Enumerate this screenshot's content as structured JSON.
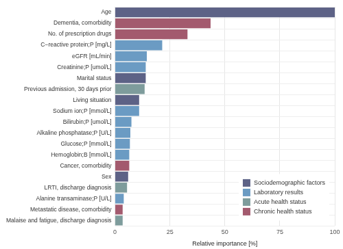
{
  "chart_data": {
    "type": "bar",
    "orientation": "horizontal",
    "stacked": true,
    "grid": true,
    "legend": "lower right",
    "x_label": "Relative importance [%]",
    "categories": [
      "Age",
      "Dementia, comorbidity",
      "No. of prescription drugs",
      "C−reactive protein;P [mg/L]",
      "eGFR [mL/min]",
      "Creatinine;P [umol/L]",
      "Marital status",
      "Previous admission, 30 days prior",
      "Living situation",
      "Sodium ion;P [mmol/L]",
      "Bilirubin;P [umol/L]",
      "Alkaline phosphatase;P [U/L]",
      "Glucose;P [mmol/L]",
      "Hemoglobin;B [mmol/L]",
      "Cancer, comorbidity",
      "Sex",
      "LRTI, discharge diagnosis",
      "Alanine transaminase;P [U/L]",
      "Metastatic disease, comorbidity",
      "Malaise and fatigue, discharge diagnosis"
    ],
    "series": [
      {
        "name": "Sociodemographic factors",
        "color": "#5d6286",
        "values": [
          100,
          null,
          null,
          null,
          null,
          null,
          14,
          null,
          11,
          null,
          null,
          null,
          null,
          null,
          null,
          6,
          null,
          null,
          null,
          null
        ]
      },
      {
        "name": "Laboratory results",
        "color": "#6b9bc3",
        "values": [
          null,
          null,
          null,
          21.5,
          14.5,
          14,
          null,
          null,
          null,
          11,
          7.5,
          7,
          6.8,
          6.5,
          null,
          null,
          null,
          4,
          null,
          null
        ]
      },
      {
        "name": "Acute health status",
        "color": "#7e9c9c",
        "values": [
          null,
          null,
          null,
          null,
          null,
          null,
          null,
          13.5,
          null,
          null,
          null,
          null,
          null,
          null,
          null,
          null,
          5.5,
          null,
          null,
          3.5
        ]
      },
      {
        "name": "Chronic health status",
        "color": "#a35a6e",
        "values": [
          null,
          43.5,
          33,
          null,
          null,
          null,
          null,
          null,
          null,
          null,
          null,
          null,
          null,
          null,
          6.5,
          null,
          null,
          null,
          3.5,
          null
        ]
      }
    ],
    "xlim": [
      0,
      100
    ],
    "xticks": [
      0,
      25,
      50,
      75,
      100
    ]
  }
}
